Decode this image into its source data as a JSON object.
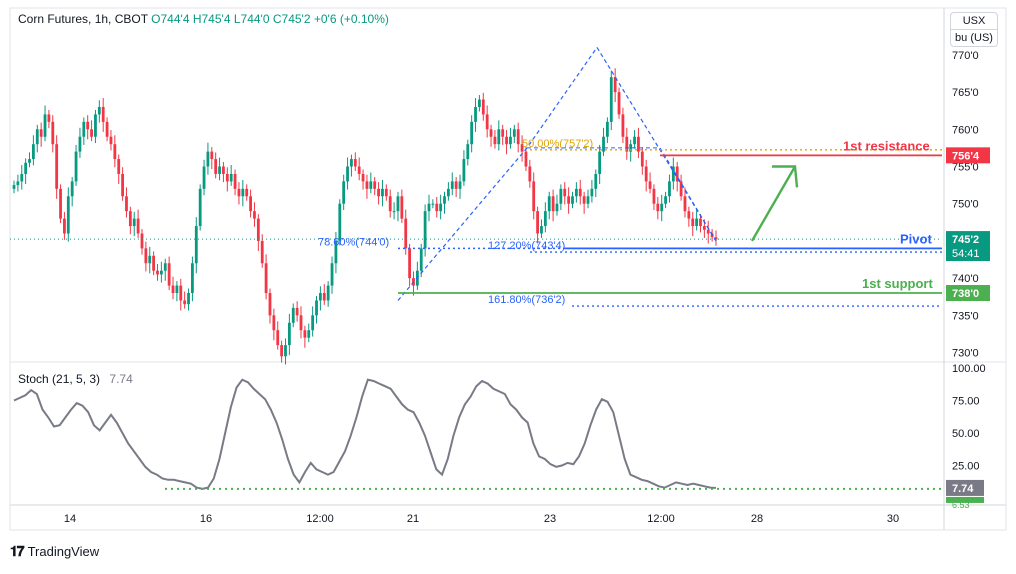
{
  "header": {
    "symbol": "Corn Futures, 1h, CBOT",
    "open": "O744'4",
    "high": "H745'4",
    "low": "L744'0",
    "close": "C745'2",
    "change": "+0'6 (+0.10%)"
  },
  "unit": {
    "currency": "USX",
    "unit": "bu (US)"
  },
  "stoch_indicator": {
    "label": "Stoch (21, 5, 3)",
    "value": "7.74"
  },
  "brand": {
    "name": "TradingView"
  },
  "colors": {
    "up": "#089981",
    "down": "#f23645",
    "resistance": "#f23645",
    "support": "#4caf50",
    "pivot": "#2962ff",
    "fib": "#2962ff",
    "stoch": "#787b86"
  },
  "chart_data": [
    {
      "type": "candlestick",
      "ylim": [
        729,
        772
      ],
      "y_ticks": [
        "770'0",
        "765'0",
        "760'0",
        "755'0",
        "750'0",
        "745'0",
        "740'0",
        "735'0",
        "730'0"
      ],
      "x_ticks": [
        "14",
        "16",
        "12:00",
        "21",
        "23",
        "12:00",
        "28",
        "30"
      ],
      "price_close": [
        752.5,
        753,
        754,
        755.5,
        756,
        758,
        760,
        759,
        762,
        761,
        758,
        752,
        748,
        746,
        751,
        753,
        757,
        759,
        761,
        760,
        759,
        762,
        763,
        761,
        759,
        758,
        756,
        754,
        751,
        749,
        747,
        748,
        746,
        744,
        742,
        743,
        741,
        740.5,
        741,
        742,
        739,
        738,
        739,
        737,
        736.5,
        738,
        742,
        747,
        752,
        755,
        757,
        756,
        754,
        755,
        754,
        753,
        754,
        752,
        751,
        752,
        751,
        749,
        748,
        745,
        742,
        738,
        735,
        733,
        731,
        729.5,
        731,
        734,
        736,
        735,
        733,
        732,
        733,
        735,
        737,
        738,
        737,
        739,
        742,
        745,
        750,
        753,
        755,
        756,
        755,
        754,
        753,
        752,
        753,
        752,
        751,
        752,
        751,
        749,
        749,
        751,
        748,
        744,
        740,
        739,
        741,
        744,
        749,
        750,
        750,
        749,
        750,
        751,
        752,
        753,
        752,
        753,
        756,
        758,
        761,
        763,
        764,
        762,
        760,
        759,
        758,
        760,
        759,
        758,
        759,
        760,
        758,
        757,
        755,
        753,
        749,
        746,
        747,
        749,
        751,
        749,
        750,
        752,
        751,
        750,
        751,
        752,
        751,
        750,
        751,
        752,
        754,
        757,
        759,
        761,
        767,
        765,
        762,
        759,
        757,
        758,
        759,
        757,
        755,
        753,
        752,
        750,
        749,
        750,
        751,
        753,
        755,
        753,
        751,
        749,
        748,
        747,
        748,
        747,
        746.5,
        746,
        745.5,
        745.2
      ],
      "fib_levels": [
        {
          "label": "50.00%(757'2)",
          "price": 757.25
        },
        {
          "label": "78.60%(744'0)",
          "price": 744.0
        },
        {
          "label": "127.20%(743'4)",
          "price": 743.5
        },
        {
          "label": "161.80%(736'2)",
          "price": 736.25
        }
      ],
      "levels": [
        {
          "label": "1st resistance",
          "tag": "756'4",
          "price": 756.5
        },
        {
          "label": "Pivot",
          "tag": "744'0",
          "price": 744.0
        },
        {
          "label": "1st support",
          "tag": "738'0",
          "price": 738.0
        }
      ],
      "last_price_tag": "745'2",
      "countdown_tag": "54:41",
      "last_price": 745.25
    },
    {
      "type": "line",
      "ylim": [
        0,
        100
      ],
      "y_ticks": [
        "100.00",
        "75.00",
        "50.00",
        "25.00"
      ],
      "stoch_values": [
        75,
        77,
        79,
        83,
        80,
        68,
        62,
        55,
        56,
        62,
        68,
        73,
        71,
        66,
        56,
        52,
        58,
        64,
        58,
        50,
        42,
        36,
        30,
        24,
        20,
        18,
        15,
        14,
        14,
        13,
        12,
        11,
        8,
        7,
        8,
        15,
        30,
        50,
        70,
        85,
        91,
        89,
        84,
        80,
        76,
        68,
        58,
        45,
        30,
        18,
        12,
        20,
        27,
        22,
        20,
        18,
        20,
        28,
        36,
        48,
        62,
        78,
        91,
        90,
        88,
        86,
        84,
        78,
        72,
        68,
        66,
        58,
        48,
        35,
        22,
        18,
        30,
        48,
        62,
        72,
        78,
        86,
        90,
        88,
        84,
        82,
        80,
        72,
        68,
        62,
        58,
        42,
        32,
        30,
        26,
        24,
        25,
        27,
        26,
        32,
        42,
        56,
        68,
        76,
        74,
        66,
        48,
        30,
        18,
        16,
        14,
        13,
        11,
        9,
        8,
        10,
        12,
        11,
        10,
        11,
        10,
        9,
        8,
        7.74
      ],
      "current_value_tag": "7.74",
      "lower_tag": "6.53"
    }
  ]
}
